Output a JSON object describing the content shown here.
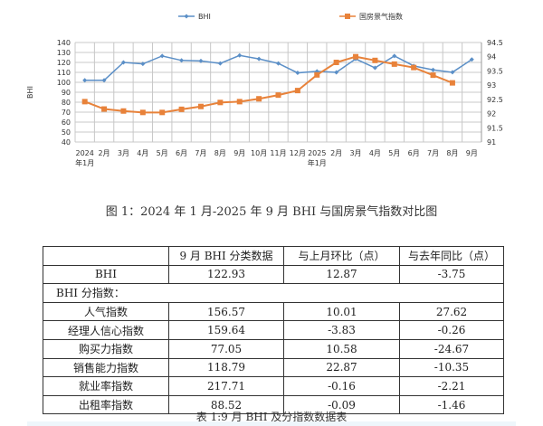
{
  "chart_data": {
    "type": "line",
    "legend_placement": "top",
    "grid": true,
    "ylabel": "BHI",
    "categories": [
      [
        "2024",
        "年1月"
      ],
      [
        "2月"
      ],
      [
        "3月"
      ],
      [
        "4月"
      ],
      [
        "5月"
      ],
      [
        "6月"
      ],
      [
        "7月"
      ],
      [
        "8月"
      ],
      [
        "9月"
      ],
      [
        "10月"
      ],
      [
        "11月"
      ],
      [
        "12月"
      ],
      [
        "2025",
        "年1月"
      ],
      [
        "2月"
      ],
      [
        "3月"
      ],
      [
        "4月"
      ],
      [
        "5月"
      ],
      [
        "6月"
      ],
      [
        "7月"
      ],
      [
        "8月"
      ],
      [
        "9月"
      ]
    ],
    "y_left": {
      "range": [
        40,
        140
      ],
      "ticks": [
        40,
        50,
        60,
        70,
        80,
        90,
        100,
        110,
        120,
        130,
        140
      ]
    },
    "y_right": {
      "range": [
        91,
        94.5
      ],
      "ticks": [
        "91",
        "91.5",
        "92",
        "92.5",
        "93",
        "93.5",
        "94",
        "94.5"
      ]
    },
    "series": [
      {
        "name": "BHI",
        "axis": "left",
        "color": "#5b8fc7",
        "marker": "diamond",
        "values": [
          102,
          102,
          120,
          118.5,
          126.5,
          122,
          121.5,
          119,
          127,
          123.5,
          119,
          109.5,
          111,
          110,
          123.5,
          114.5,
          126.5,
          116.5,
          112.5,
          110.06,
          122.93
        ]
      },
      {
        "name": "国房景气指数",
        "axis": "right",
        "color": "#e8823a",
        "marker": "square",
        "values": [
          92.42,
          92.16,
          92.09,
          92.04,
          92.04,
          92.15,
          92.25,
          92.39,
          92.42,
          92.52,
          92.65,
          92.81,
          93.36,
          93.8,
          94.0,
          93.87,
          93.74,
          93.62,
          93.35,
          93.08,
          null
        ]
      }
    ]
  },
  "figure_caption": "图 1：2024 年 1 月-2025 年 9 月 BHI 与国房景气指数对比图",
  "table": {
    "headers": [
      "",
      "9 月 BHI 分类数据",
      "与上月环比（点）",
      "与去年同比（点）"
    ],
    "bhi_row": [
      "BHI",
      "122.93",
      "12.87",
      "-3.75"
    ],
    "section_label": "BHI 分指数：",
    "rows": [
      [
        "人气指数",
        "156.57",
        "10.01",
        "27.62"
      ],
      [
        "经理人信心指数",
        "159.64",
        "-3.83",
        "-0.26"
      ],
      [
        "购买力指数",
        "77.05",
        "10.58",
        "-24.67"
      ],
      [
        "销售能力指数",
        "118.79",
        "22.87",
        "-10.35"
      ],
      [
        "就业率指数",
        "217.71",
        "-0.16",
        "-2.21"
      ],
      [
        "出租率指数",
        "88.52",
        "-0.09",
        "-1.46"
      ]
    ],
    "caption": "表 1:9 月 BHI 及分指数数据表"
  }
}
